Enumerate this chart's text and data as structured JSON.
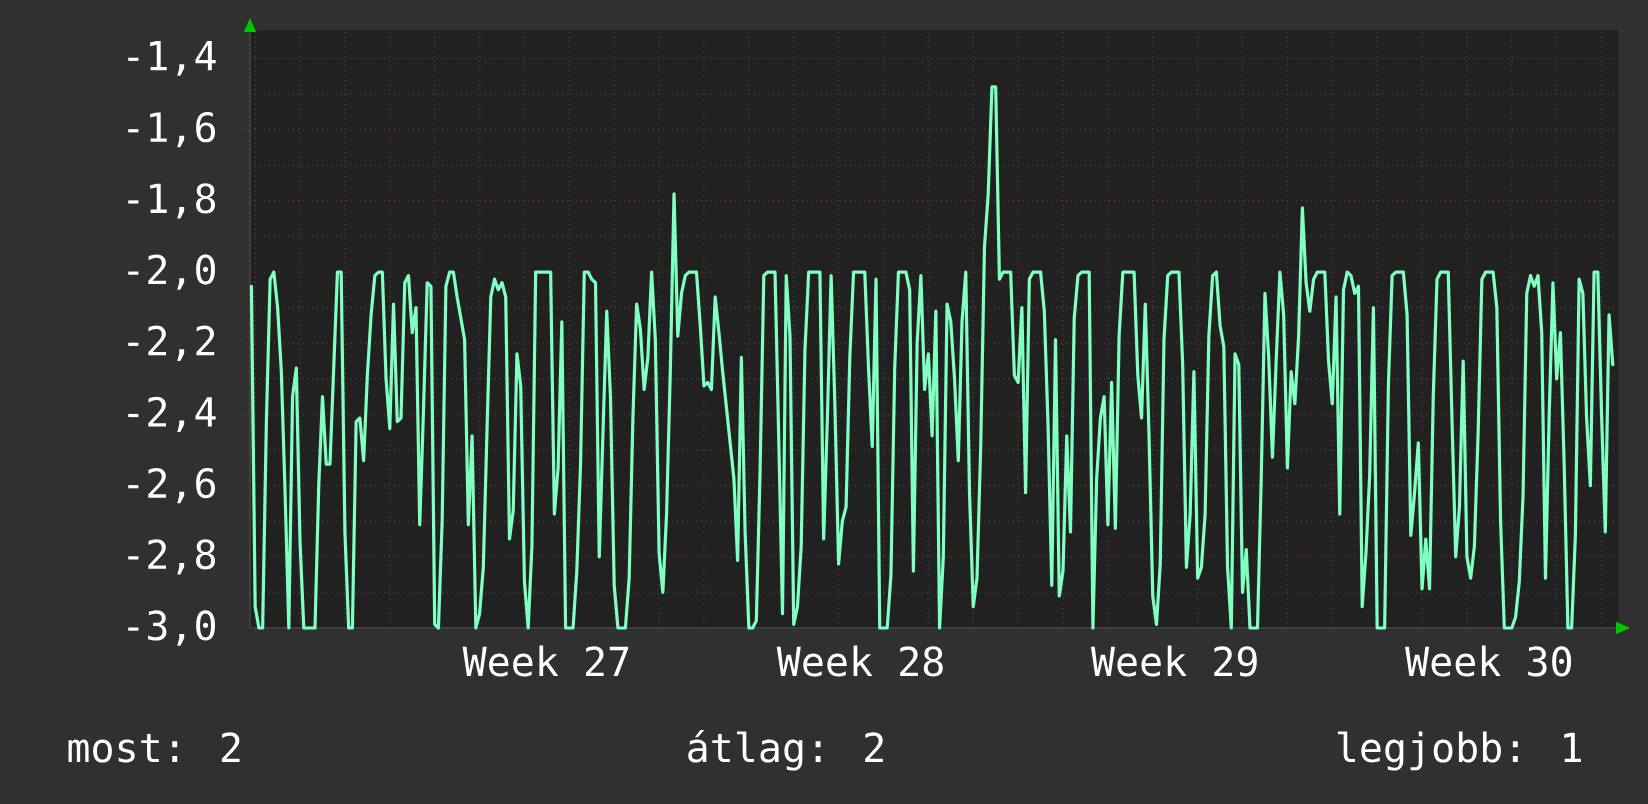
{
  "chart_data": {
    "type": "line",
    "grid": true,
    "marker": "none",
    "line_style": "solid",
    "categories": [
      null,
      null,
      null,
      null,
      null,
      null,
      null,
      null,
      null,
      null,
      null,
      null,
      null,
      null,
      null,
      null,
      null,
      null,
      null,
      null,
      null,
      null,
      null,
      null,
      null,
      null,
      null,
      null,
      null,
      null,
      null,
      null,
      null,
      null,
      null,
      null,
      null,
      null,
      null,
      null,
      null,
      null,
      null,
      null,
      null,
      null,
      null,
      null,
      null,
      null,
      null,
      null,
      null,
      null,
      null,
      null,
      null,
      null,
      null,
      null,
      null,
      null,
      null,
      null,
      null,
      null,
      null,
      null,
      null,
      null,
      null,
      null,
      null,
      null,
      null,
      null,
      null,
      null,
      null,
      "Week 27",
      null,
      null,
      null,
      null,
      null,
      null,
      null,
      null,
      null,
      null,
      null,
      null,
      null,
      null,
      null,
      null,
      null,
      null,
      null,
      null,
      null,
      null,
      null,
      null,
      null,
      null,
      null,
      null,
      null,
      null,
      null,
      null,
      null,
      null,
      null,
      null,
      null,
      null,
      null,
      null,
      null,
      null,
      null,
      null,
      null,
      null,
      null,
      null,
      null,
      null,
      null,
      null,
      null,
      null,
      null,
      null,
      null,
      null,
      null,
      null,
      null,
      null,
      null,
      null,
      null,
      null,
      null,
      null,
      null,
      null,
      null,
      null,
      null,
      null,
      null,
      null,
      null,
      null,
      null,
      null,
      null,
      null,
      null,
      "Week 28",
      null,
      null,
      null,
      null,
      null,
      null,
      null,
      null,
      null,
      null,
      null,
      null,
      null,
      null,
      null,
      null,
      null,
      null,
      null,
      null,
      null,
      null,
      null,
      null,
      null,
      null,
      null,
      null,
      null,
      null,
      null,
      null,
      null,
      null,
      null,
      null,
      null,
      null,
      null,
      null,
      null,
      null,
      null,
      null,
      null,
      null,
      null,
      null,
      null,
      null,
      null,
      null,
      null,
      null,
      null,
      null,
      null,
      null,
      null,
      null,
      null,
      null,
      null,
      null,
      null,
      null,
      null,
      null,
      null,
      null,
      null,
      null,
      null,
      null,
      null,
      null,
      null,
      null,
      null,
      null,
      null,
      null,
      null,
      "Week 29",
      null,
      null,
      null,
      null,
      null,
      null,
      null,
      null,
      null,
      null,
      null,
      null,
      null,
      null,
      null,
      null,
      null,
      null,
      null,
      null,
      null,
      null,
      null,
      null,
      null,
      null,
      null,
      null,
      null,
      null,
      null,
      null,
      null,
      null,
      null,
      null,
      null,
      null,
      null,
      null,
      null,
      null,
      null,
      null,
      null,
      null,
      null,
      null,
      null,
      null,
      null,
      null,
      null,
      null,
      null,
      null,
      null,
      null,
      null,
      null,
      null,
      null,
      null,
      null,
      null,
      null,
      null,
      null,
      null,
      null,
      null,
      null,
      null,
      null,
      null,
      null,
      null,
      null,
      null,
      null,
      null,
      null,
      null,
      "Week 30",
      null,
      null,
      null,
      null,
      null,
      null,
      null,
      null,
      null,
      null,
      null,
      null,
      null,
      null,
      null,
      null,
      null,
      null,
      null,
      null,
      null,
      null,
      null,
      null,
      null,
      null,
      null,
      null,
      null,
      null,
      null,
      null,
      null
    ],
    "ylim": [
      -3.0,
      -1.32
    ],
    "yticks": [
      {
        "value": -3.0,
        "label": "-3,0"
      },
      {
        "value": -2.8,
        "label": "-2,8"
      },
      {
        "value": -2.6,
        "label": "-2,6"
      },
      {
        "value": -2.4,
        "label": "-2,4"
      },
      {
        "value": -2.2,
        "label": "-2,2"
      },
      {
        "value": -2.0,
        "label": "-2,0"
      },
      {
        "value": -1.8,
        "label": "-1,8"
      },
      {
        "value": -1.6,
        "label": "-1,6"
      },
      {
        "value": -1.4,
        "label": "-1,4"
      }
    ],
    "series": [
      {
        "color": "#80ffc0",
        "values": [
          -2.04,
          -2.94,
          -3.0,
          -3.0,
          -2.42,
          -2.02,
          -2.0,
          -2.1,
          -2.28,
          -2.62,
          -3.0,
          -2.35,
          -2.27,
          -2.76,
          -3.0,
          -3.0,
          -3.0,
          -3.0,
          -2.6,
          -2.35,
          -2.54,
          -2.54,
          -2.27,
          -2.0,
          -2.0,
          -2.73,
          -3.0,
          -3.0,
          -2.42,
          -2.41,
          -2.53,
          -2.29,
          -2.12,
          -2.01,
          -2.0,
          -2.0,
          -2.3,
          -2.44,
          -2.09,
          -2.42,
          -2.41,
          -2.03,
          -2.01,
          -2.17,
          -2.1,
          -2.71,
          -2.39,
          -2.03,
          -2.04,
          -2.99,
          -3.0,
          -2.7,
          -2.04,
          -2.0,
          -2.0,
          -2.07,
          -2.13,
          -2.19,
          -2.71,
          -2.46,
          -3.0,
          -2.96,
          -2.83,
          -2.44,
          -2.07,
          -2.02,
          -2.05,
          -2.03,
          -2.07,
          -2.75,
          -2.67,
          -2.23,
          -2.32,
          -2.87,
          -3.0,
          -2.77,
          -2.0,
          -2.0,
          -2.0,
          -2.0,
          -2.0,
          -2.68,
          -2.55,
          -2.14,
          -3.0,
          -3.0,
          -3.0,
          -2.84,
          -2.54,
          -2.0,
          -2.0,
          -2.02,
          -2.03,
          -2.8,
          -2.45,
          -2.11,
          -2.35,
          -2.88,
          -3.0,
          -3.0,
          -3.0,
          -2.86,
          -2.41,
          -2.09,
          -2.16,
          -2.33,
          -2.24,
          -2.0,
          -2.19,
          -2.79,
          -2.9,
          -2.68,
          -2.28,
          -1.78,
          -2.18,
          -2.06,
          -2.01,
          -2.0,
          -2.0,
          -2.0,
          -2.15,
          -2.32,
          -2.31,
          -2.33,
          -2.07,
          -2.17,
          -2.28,
          -2.38,
          -2.48,
          -2.58,
          -2.81,
          -2.24,
          -2.73,
          -3.0,
          -3.0,
          -2.98,
          -2.56,
          -2.01,
          -2.0,
          -2.0,
          -2.0,
          -2.47,
          -2.96,
          -2.01,
          -2.18,
          -2.99,
          -2.94,
          -2.77,
          -2.22,
          -2.0,
          -2.0,
          -2.0,
          -2.0,
          -2.75,
          -2.41,
          -2.01,
          -2.37,
          -2.82,
          -2.7,
          -2.66,
          -2.24,
          -2.0,
          -2.0,
          -2.0,
          -2.0,
          -2.27,
          -2.49,
          -2.02,
          -3.0,
          -3.0,
          -3.0,
          -2.85,
          -2.27,
          -2.0,
          -2.0,
          -2.0,
          -2.05,
          -2.84,
          -2.2,
          -2.01,
          -2.33,
          -2.23,
          -2.46,
          -2.11,
          -3.0,
          -2.8,
          -2.09,
          -2.14,
          -2.3,
          -2.53,
          -2.14,
          -2.0,
          -2.62,
          -2.94,
          -2.86,
          -2.49,
          -1.93,
          -1.78,
          -1.48,
          -1.48,
          -2.02,
          -2.0,
          -2.0,
          -2.0,
          -2.29,
          -2.31,
          -2.1,
          -2.62,
          -2.02,
          -2.0,
          -2.0,
          -2.0,
          -2.11,
          -2.43,
          -2.88,
          -2.19,
          -2.91,
          -2.84,
          -2.46,
          -2.73,
          -2.13,
          -2.01,
          -2.0,
          -2.0,
          -2.0,
          -3.0,
          -2.58,
          -2.41,
          -2.35,
          -2.71,
          -2.31,
          -2.72,
          -2.18,
          -2.0,
          -2.0,
          -2.0,
          -2.0,
          -2.29,
          -2.41,
          -2.09,
          -2.46,
          -2.91,
          -2.99,
          -2.82,
          -2.19,
          -2.01,
          -2.0,
          -2.0,
          -2.0,
          -2.26,
          -2.83,
          -2.68,
          -2.28,
          -2.86,
          -2.83,
          -2.68,
          -2.18,
          -2.01,
          -2.0,
          -2.15,
          -2.21,
          -2.83,
          -3.0,
          -2.23,
          -2.26,
          -2.9,
          -2.78,
          -3.0,
          -3.0,
          -3.0,
          -2.58,
          -2.06,
          -2.24,
          -2.52,
          -2.25,
          -2.0,
          -2.12,
          -2.55,
          -2.28,
          -2.37,
          -2.18,
          -1.82,
          -2.03,
          -2.11,
          -2.02,
          -2.0,
          -2.0,
          -2.0,
          -2.25,
          -2.37,
          -2.07,
          -2.68,
          -2.05,
          -2.0,
          -2.01,
          -2.06,
          -2.04,
          -2.94,
          -2.79,
          -2.57,
          -2.1,
          -3.0,
          -3.0,
          -3.0,
          -2.32,
          -2.01,
          -2.0,
          -2.0,
          -2.0,
          -2.12,
          -2.74,
          -2.62,
          -2.48,
          -2.89,
          -2.75,
          -2.89,
          -2.35,
          -2.02,
          -2.0,
          -2.0,
          -2.0,
          -2.41,
          -2.8,
          -2.66,
          -2.25,
          -2.8,
          -2.86,
          -2.77,
          -2.45,
          -2.02,
          -2.0,
          -2.0,
          -2.0,
          -2.1,
          -2.7,
          -3.0,
          -3.0,
          -3.0,
          -2.97,
          -2.87,
          -2.63,
          -2.06,
          -2.01,
          -2.04,
          -2.01,
          -2.17,
          -2.86,
          -2.4,
          -2.03,
          -2.3,
          -2.17,
          -2.54,
          -3.0,
          -3.0,
          -2.74,
          -2.02,
          -2.06,
          -2.41,
          -2.6,
          -2.0,
          -2.0,
          -2.4,
          -2.73,
          -2.12,
          -2.26
        ]
      }
    ],
    "annotations": [
      "most: 2",
      "átlag: 2",
      "legjobb: 1"
    ]
  }
}
